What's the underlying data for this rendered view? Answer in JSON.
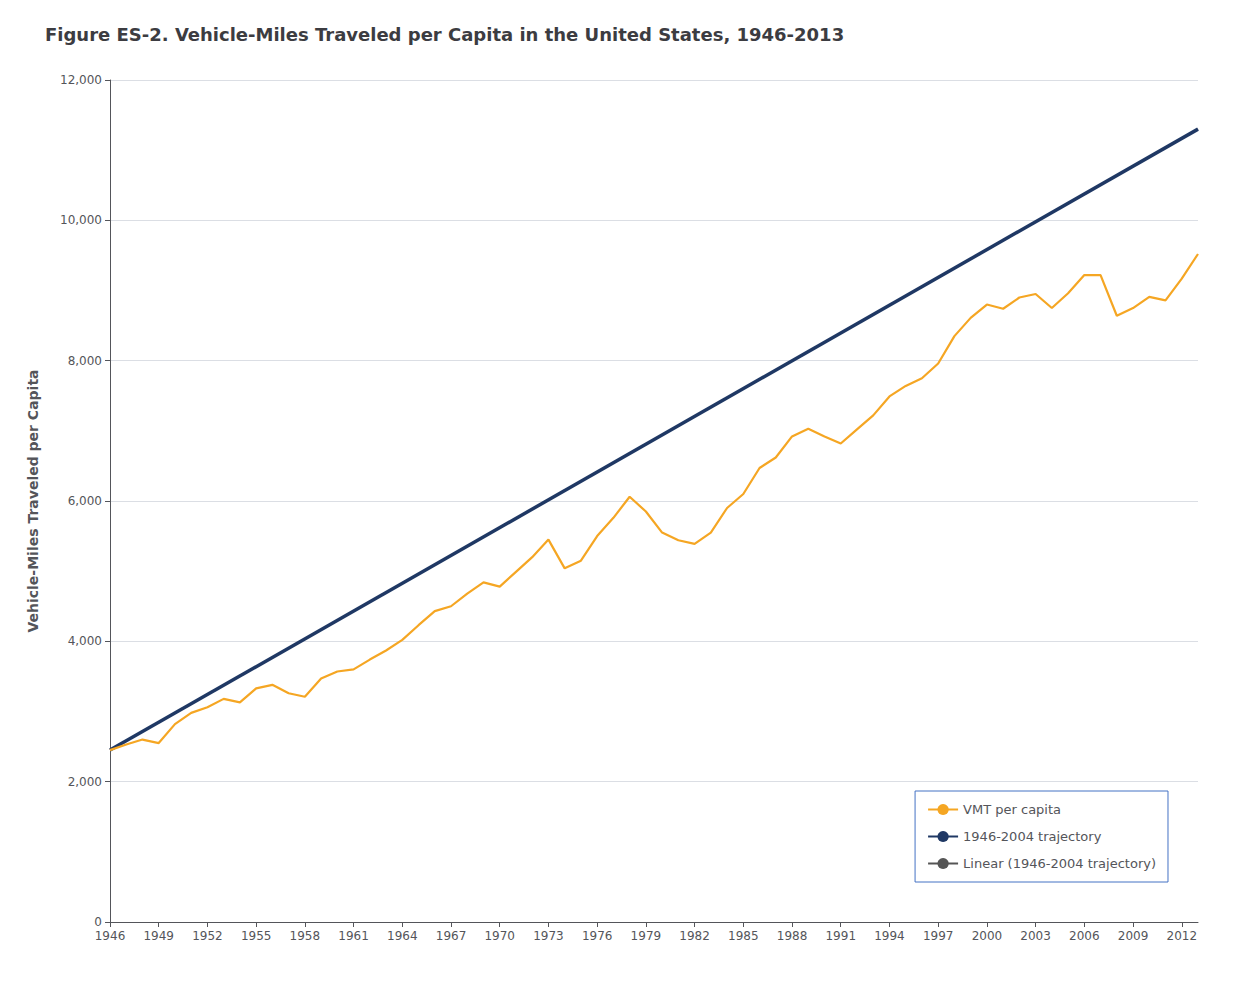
{
  "chart_data": {
    "type": "line",
    "title": "Figure ES-2. Vehicle-Miles Traveled per Capita in the United States, 1946-2013",
    "ylabel": "Vehicle-Miles Traveled per Capita",
    "xlim": [
      1946,
      2013
    ],
    "xticks": [
      1946,
      1949,
      1952,
      1955,
      1958,
      1961,
      1964,
      1967,
      1970,
      1973,
      1976,
      1979,
      1982,
      1985,
      1988,
      1991,
      1994,
      1997,
      2000,
      2003,
      2006,
      2009,
      2012
    ],
    "ylim": [
      0,
      12000
    ],
    "yticks": [
      0,
      {
        "value": 2000,
        "label": "2,000"
      },
      {
        "value": 4000,
        "label": "4,000"
      },
      {
        "value": 6000,
        "label": "6,000"
      },
      {
        "value": 8000,
        "label": "8,000"
      },
      {
        "value": 10000,
        "label": "10,000"
      },
      {
        "value": 12000,
        "label": "12,000"
      }
    ],
    "grid": true,
    "legend": "lower right",
    "series": [
      {
        "name": "VMT per capita",
        "color": "#f5a623",
        "x": [
          1946,
          1947,
          1948,
          1949,
          1950,
          1951,
          1952,
          1953,
          1954,
          1955,
          1956,
          1957,
          1958,
          1959,
          1960,
          1961,
          1962,
          1963,
          1964,
          1965,
          1966,
          1967,
          1968,
          1969,
          1970,
          1971,
          1972,
          1973,
          1974,
          1975,
          1976,
          1977,
          1978,
          1979,
          1980,
          1981,
          1982,
          1983,
          1984,
          1985,
          1986,
          1987,
          1988,
          1989,
          1990,
          1991,
          1992,
          1993,
          1994,
          1995,
          1996,
          1997,
          1998,
          1999,
          2000,
          2001,
          2002,
          2003,
          2004,
          2005,
          2006,
          2007,
          2008,
          2009,
          2010,
          2011,
          2012,
          2013
        ],
        "values": [
          2450,
          2530,
          2600,
          2550,
          2820,
          2980,
          3060,
          3180,
          3130,
          3330,
          3380,
          3260,
          3210,
          3470,
          3570,
          3600,
          3740,
          3870,
          4020,
          4230,
          4430,
          4500,
          4680,
          4840,
          4780,
          4990,
          5200,
          5450,
          5040,
          5150,
          5500,
          5760,
          6060,
          5850,
          5550,
          5440,
          5390,
          5550,
          5900,
          6100,
          6470,
          6620,
          6920,
          7030,
          6920,
          6820,
          7020,
          7220,
          7490,
          7640,
          7750,
          7960,
          8350,
          8610,
          8800,
          8740,
          8900,
          8950,
          8750,
          8960,
          9220,
          9220,
          8640,
          8750,
          8910,
          8860,
          9170,
          9520
        ]
      },
      {
        "name": "1946-2004 trajectory",
        "color": "#1f3864",
        "x": [
          1946,
          2013
        ],
        "values": [
          2450,
          11300
        ]
      },
      {
        "name": "Linear (1946-2004 trajectory)",
        "color": "#555555",
        "x": [
          1946,
          2013
        ],
        "values": [
          2450,
          11300
        ]
      }
    ]
  }
}
